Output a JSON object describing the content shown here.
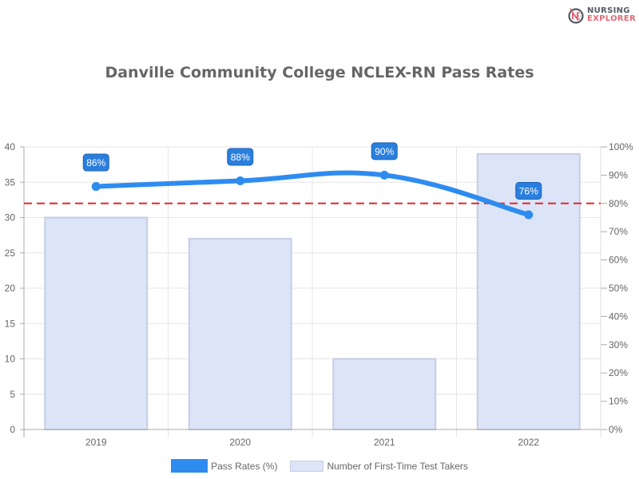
{
  "logo": {
    "line1": "NURSING",
    "line2": "EXPLORER",
    "icon": "nursing-explorer-logo-icon"
  },
  "title": "Danville Community College NCLEX-RN Pass Rates",
  "legend": [
    {
      "label": "Pass Rates (%)",
      "color": "#2e8cf0"
    },
    {
      "label": "Number of First-Time Test Takers",
      "color": "#dce4f7"
    }
  ],
  "axes": {
    "left_ticks": [
      "0",
      "5",
      "10",
      "15",
      "20",
      "25",
      "30",
      "35",
      "40"
    ],
    "right_ticks": [
      "0%",
      "10%",
      "20%",
      "30%",
      "40%",
      "50%",
      "60%",
      "70%",
      "80%",
      "90%",
      "100%"
    ],
    "x_ticks": [
      "2019",
      "2020",
      "2021",
      "2022"
    ]
  },
  "point_labels": [
    "86%",
    "88%",
    "90%",
    "76%"
  ],
  "chart_data": {
    "type": "bar",
    "title": "Danville Community College NCLEX-RN Pass Rates",
    "categories": [
      "2019",
      "2020",
      "2021",
      "2022"
    ],
    "series": [
      {
        "name": "Pass Rates (%)",
        "type": "line",
        "axis": "right",
        "values": [
          86,
          88,
          90,
          76
        ],
        "color": "#2e8cf0"
      },
      {
        "name": "Number of First-Time Test Takers",
        "type": "bar",
        "axis": "left",
        "values": [
          30,
          27,
          10,
          39
        ],
        "color": "#dce4f7"
      }
    ],
    "reference_line": {
      "axis": "right",
      "value": 80,
      "style": "dashed",
      "color": "#e3262b"
    },
    "xlabel": "",
    "ylabel": "",
    "ylim": [
      0,
      40
    ],
    "y2lim": [
      0,
      100
    ],
    "grid": true,
    "legend_position": "bottom"
  }
}
